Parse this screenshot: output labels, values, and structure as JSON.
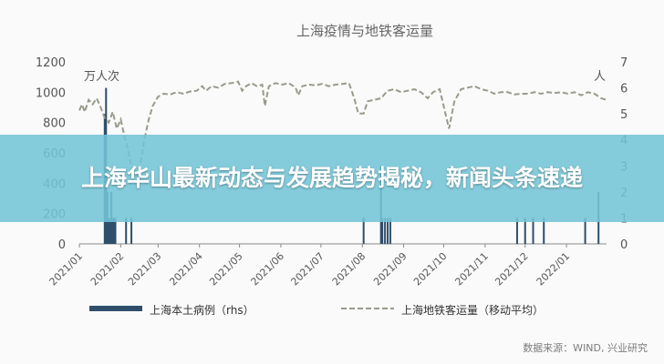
{
  "banner": {
    "headline": "上海华山最新动态与发展趋势揭秘，新闻头条速递"
  },
  "source": "数据来源：WIND, 兴业研究",
  "colors": {
    "bars": "#2f4e6b",
    "line": "#9a9a8c",
    "axis": "#8a8a8a",
    "text": "#555555"
  },
  "chart_data": {
    "type": "bar+line",
    "title": "上海疫情与地铁客运量",
    "left_axis": {
      "unit": "万人次",
      "range": [
        0,
        1200
      ],
      "ticks": [
        0,
        200,
        400,
        600,
        800,
        1000,
        1200
      ]
    },
    "right_axis": {
      "unit": "人",
      "range": [
        0,
        7
      ],
      "ticks": [
        0,
        1,
        2,
        3,
        4,
        5,
        6,
        7
      ]
    },
    "x_range": [
      "2021-01-01",
      "2022-01-31"
    ],
    "x_ticks": [
      "2021/01",
      "2021/02",
      "2021/03",
      "2021/04",
      "2021/05",
      "2021/06",
      "2021/07",
      "2021/08",
      "2021/09",
      "2021/10",
      "2021/11",
      "2021/12",
      "2022/01"
    ],
    "series": [
      {
        "name": "上海本土病例（rhs）",
        "type": "bar",
        "axis": "right",
        "points": [
          [
            "2021-01-20",
            5
          ],
          [
            "2021-01-21",
            6
          ],
          [
            "2021-01-22",
            2
          ],
          [
            "2021-01-23",
            1
          ],
          [
            "2021-01-24",
            1
          ],
          [
            "2021-01-25",
            2
          ],
          [
            "2021-01-26",
            1
          ],
          [
            "2021-01-27",
            1
          ],
          [
            "2021-01-28",
            1
          ],
          [
            "2021-02-05",
            1
          ],
          [
            "2021-02-09",
            1
          ],
          [
            "2021-08-02",
            1
          ],
          [
            "2021-08-15",
            3
          ],
          [
            "2021-08-16",
            1
          ],
          [
            "2021-08-18",
            1
          ],
          [
            "2021-08-20",
            1
          ],
          [
            "2021-08-22",
            1
          ],
          [
            "2021-11-25",
            1
          ],
          [
            "2021-12-01",
            1
          ],
          [
            "2021-12-07",
            1
          ],
          [
            "2021-12-15",
            1
          ],
          [
            "2022-01-15",
            1
          ],
          [
            "2022-01-25",
            2
          ]
        ]
      },
      {
        "name": "上海地铁客运量（移动平均）",
        "type": "line",
        "axis": "left",
        "style": "dashed",
        "points": [
          [
            "2021-01-01",
            880
          ],
          [
            "2021-01-03",
            920
          ],
          [
            "2021-01-05",
            870
          ],
          [
            "2021-01-08",
            950
          ],
          [
            "2021-01-11",
            920
          ],
          [
            "2021-01-14",
            960
          ],
          [
            "2021-01-17",
            900
          ],
          [
            "2021-01-20",
            830
          ],
          [
            "2021-01-23",
            800
          ],
          [
            "2021-01-26",
            870
          ],
          [
            "2021-01-29",
            760
          ],
          [
            "2021-02-01",
            820
          ],
          [
            "2021-02-04",
            700
          ],
          [
            "2021-02-07",
            600
          ],
          [
            "2021-02-10",
            460
          ],
          [
            "2021-02-13",
            450
          ],
          [
            "2021-02-16",
            540
          ],
          [
            "2021-02-19",
            700
          ],
          [
            "2021-02-22",
            820
          ],
          [
            "2021-02-25",
            910
          ],
          [
            "2021-03-01",
            970
          ],
          [
            "2021-03-05",
            990
          ],
          [
            "2021-03-10",
            985
          ],
          [
            "2021-03-15",
            1000
          ],
          [
            "2021-03-20",
            990
          ],
          [
            "2021-03-25",
            1005
          ],
          [
            "2021-03-30",
            1010
          ],
          [
            "2021-04-03",
            1040
          ],
          [
            "2021-04-06",
            1010
          ],
          [
            "2021-04-10",
            1040
          ],
          [
            "2021-04-15",
            1030
          ],
          [
            "2021-04-20",
            1055
          ],
          [
            "2021-04-25",
            1060
          ],
          [
            "2021-04-30",
            1070
          ],
          [
            "2021-05-03",
            1010
          ],
          [
            "2021-05-06",
            1040
          ],
          [
            "2021-05-10",
            1060
          ],
          [
            "2021-05-14",
            1040
          ],
          [
            "2021-05-18",
            1050
          ],
          [
            "2021-05-20",
            910
          ],
          [
            "2021-05-23",
            1040
          ],
          [
            "2021-05-28",
            1060
          ],
          [
            "2021-06-02",
            1050
          ],
          [
            "2021-06-07",
            1060
          ],
          [
            "2021-06-12",
            1030
          ],
          [
            "2021-06-14",
            980
          ],
          [
            "2021-06-17",
            1040
          ],
          [
            "2021-06-22",
            1050
          ],
          [
            "2021-06-27",
            1045
          ],
          [
            "2021-07-02",
            1055
          ],
          [
            "2021-07-07",
            1040
          ],
          [
            "2021-07-12",
            1050
          ],
          [
            "2021-07-17",
            1055
          ],
          [
            "2021-07-22",
            1060
          ],
          [
            "2021-07-26",
            960
          ],
          [
            "2021-07-29",
            860
          ],
          [
            "2021-08-02",
            860
          ],
          [
            "2021-08-05",
            940
          ],
          [
            "2021-08-10",
            950
          ],
          [
            "2021-08-15",
            960
          ],
          [
            "2021-08-20",
            1010
          ],
          [
            "2021-08-25",
            1020
          ],
          [
            "2021-08-30",
            1000
          ],
          [
            "2021-09-04",
            1010
          ],
          [
            "2021-09-09",
            1020
          ],
          [
            "2021-09-14",
            1000
          ],
          [
            "2021-09-19",
            960
          ],
          [
            "2021-09-23",
            1000
          ],
          [
            "2021-09-28",
            1020
          ],
          [
            "2021-10-02",
            870
          ],
          [
            "2021-10-05",
            760
          ],
          [
            "2021-10-09",
            940
          ],
          [
            "2021-10-14",
            1020
          ],
          [
            "2021-10-19",
            1030
          ],
          [
            "2021-10-24",
            1040
          ],
          [
            "2021-10-29",
            1020
          ],
          [
            "2021-11-03",
            1010
          ],
          [
            "2021-11-08",
            990
          ],
          [
            "2021-11-13",
            1000
          ],
          [
            "2021-11-18",
            1000
          ],
          [
            "2021-11-23",
            985
          ],
          [
            "2021-11-28",
            990
          ],
          [
            "2021-12-03",
            990
          ],
          [
            "2021-12-08",
            1000
          ],
          [
            "2021-12-13",
            990
          ],
          [
            "2021-12-18",
            1000
          ],
          [
            "2021-12-23",
            995
          ],
          [
            "2021-12-28",
            1000
          ],
          [
            "2022-01-02",
            990
          ],
          [
            "2022-01-07",
            1000
          ],
          [
            "2022-01-12",
            980
          ],
          [
            "2022-01-17",
            1000
          ],
          [
            "2022-01-22",
            990
          ],
          [
            "2022-01-27",
            960
          ],
          [
            "2022-01-31",
            950
          ]
        ]
      }
    ],
    "legend": {
      "placement": "bottom"
    },
    "grid": false
  }
}
